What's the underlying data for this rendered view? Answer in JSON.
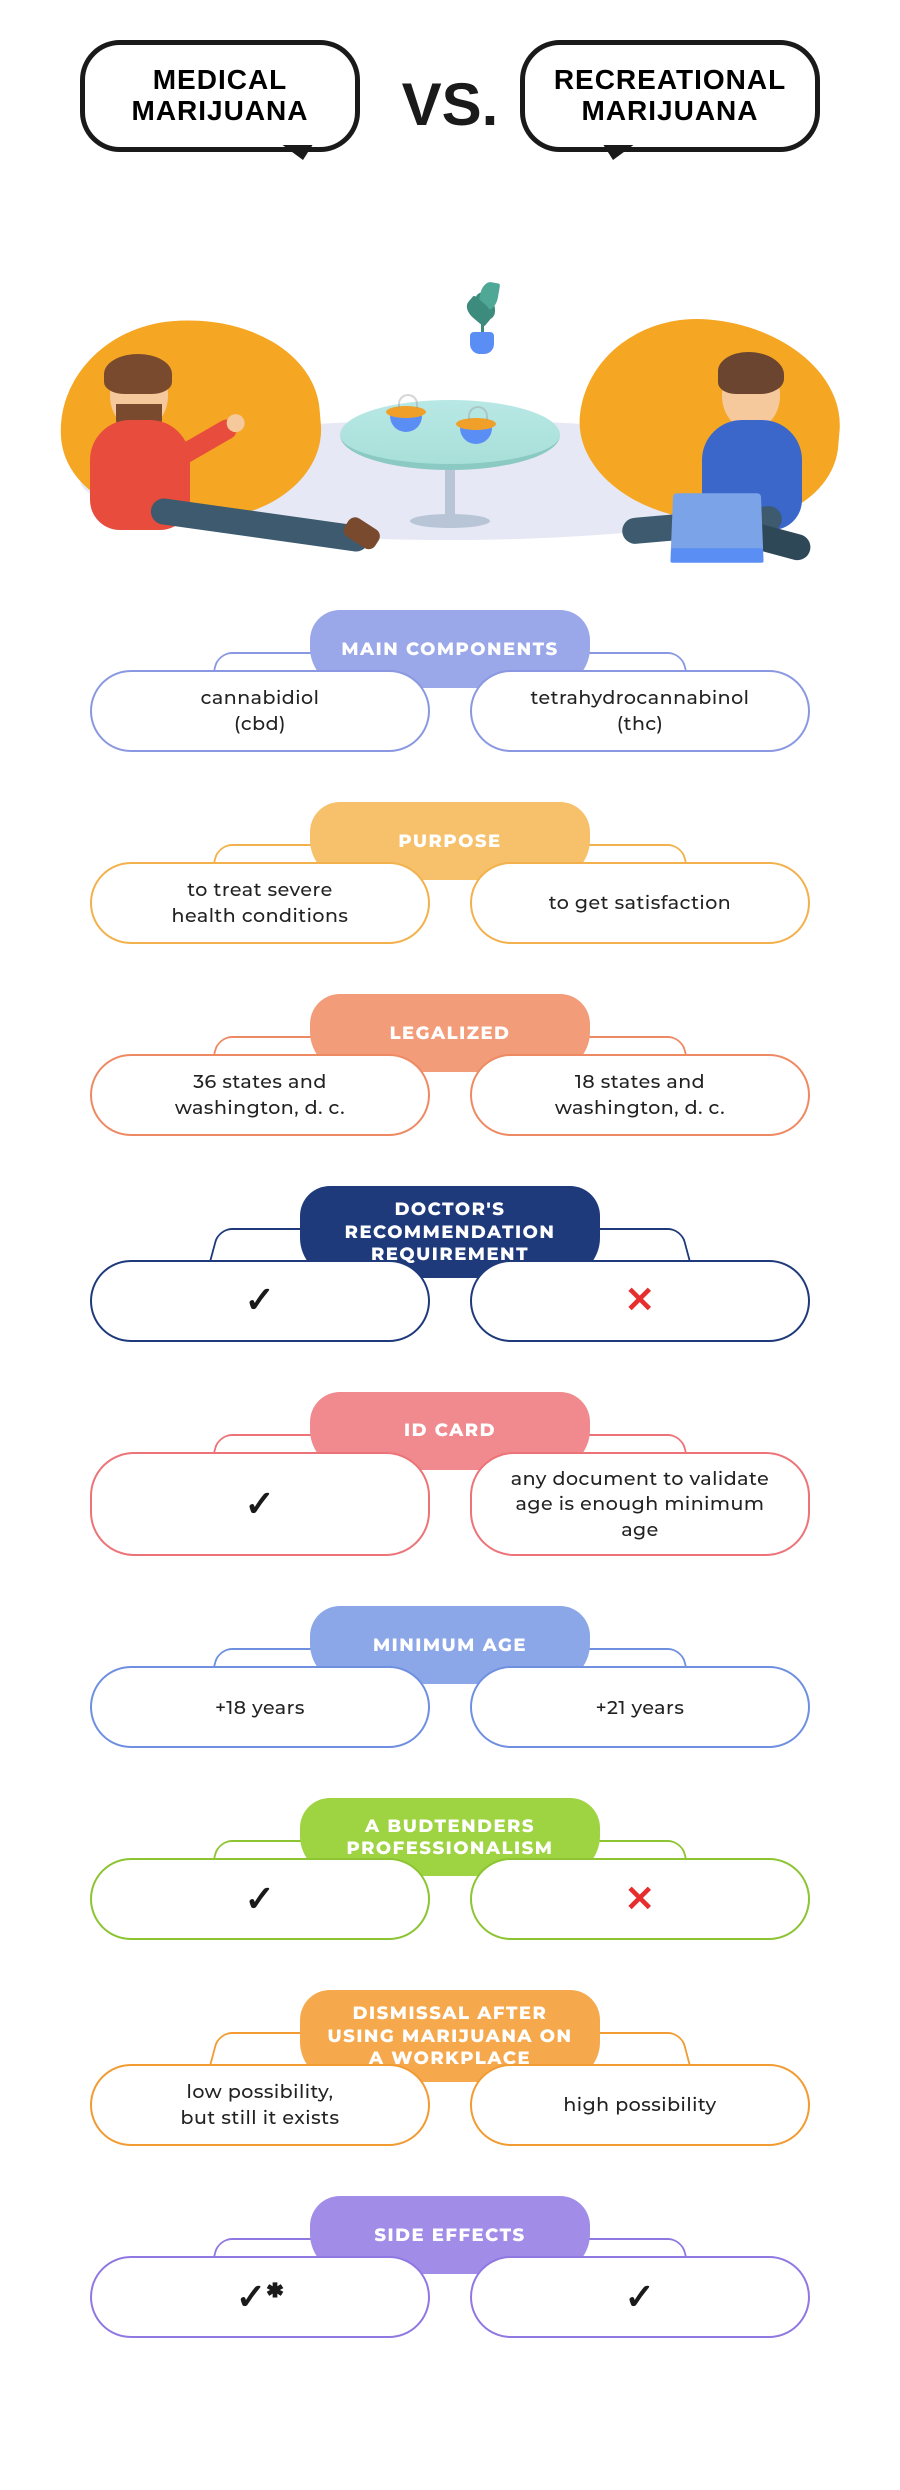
{
  "header": {
    "left_bubble": "MEDICAL\nMARIJUANA",
    "right_bubble": "RECREATIONAL\nMARIJUANA",
    "vs": "VS."
  },
  "sections": [
    {
      "title": "MAIN COMPONENTS",
      "bg": "#9aa7e8",
      "border": "#8a98e1",
      "left": {
        "type": "text",
        "value": "cannabidiol\n(cbd)"
      },
      "right": {
        "type": "text",
        "value": "tetrahydrocannabinol\n(thc)"
      }
    },
    {
      "title": "PURPOSE",
      "bg": "#f6c16a",
      "border": "#f2b14c",
      "left": {
        "type": "text",
        "value": "to treat severe\nhealth conditions"
      },
      "right": {
        "type": "text",
        "value": "to get satisfaction"
      }
    },
    {
      "title": "LEGALIZED",
      "bg": "#f29c7a",
      "border": "#ee8a63",
      "left": {
        "type": "text",
        "value": "36 states and\nwashington, d. c."
      },
      "right": {
        "type": "text",
        "value": "18 states and\nwashington, d. c."
      }
    },
    {
      "title": "DOCTOR'S RECOMMENDATION REQUIREMENT",
      "bg": "#1e3a7b",
      "border": "#1e3a7b",
      "tall": true,
      "left": {
        "type": "check",
        "value": "✓"
      },
      "right": {
        "type": "cross",
        "value": "✕"
      }
    },
    {
      "title": "ID CARD",
      "bg": "#f08a8e",
      "border": "#ec7377",
      "left": {
        "type": "check",
        "value": "✓"
      },
      "right": {
        "type": "text",
        "value": "any document to validate age is enough minimum age"
      }
    },
    {
      "title": "MINIMUM AGE",
      "bg": "#8ca7e8",
      "border": "#6f8fe0",
      "left": {
        "type": "text",
        "value": "+18 years"
      },
      "right": {
        "type": "text",
        "value": "+21 years"
      }
    },
    {
      "title": "A BUDTENDERS PROFESSIONALISM",
      "bg": "#9ed342",
      "border": "#8cc432",
      "tall": true,
      "left": {
        "type": "check",
        "value": "✓"
      },
      "right": {
        "type": "cross",
        "value": "✕"
      }
    },
    {
      "title": "DISMISSAL AFTER USING MARIJUANA ON A WORKPLACE",
      "bg": "#f5a94c",
      "border": "#f19b32",
      "tall": true,
      "left": {
        "type": "text",
        "value": "low possibility,\nbut still it exists"
      },
      "right": {
        "type": "text",
        "value": "high possibility"
      }
    },
    {
      "title": "SIDE EFFECTS",
      "bg": "#a18ce8",
      "border": "#9078e2",
      "left": {
        "type": "check",
        "value": "✓*"
      },
      "right": {
        "type": "check",
        "value": "✓"
      }
    }
  ],
  "illustration": {
    "beanbag_color": "#f5a623",
    "floor_color": "#e6e8f5",
    "table_color": "#b8e8e5",
    "person_left_shirt": "#e74c3c",
    "person_right_shirt": "#3a67c9",
    "pants_color": "#3d5a6e",
    "skin_color": "#f5c99b",
    "hair_color": "#7a4a2f",
    "laptop_color": "#7aa3e8",
    "cup_color": "#5b8ef5",
    "plant_color": "#3d8b7d"
  },
  "typography": {
    "title_fontsize": 28,
    "vs_fontsize": 60,
    "category_fontsize": 18,
    "pill_fontsize": 19,
    "icon_fontsize": 36
  }
}
